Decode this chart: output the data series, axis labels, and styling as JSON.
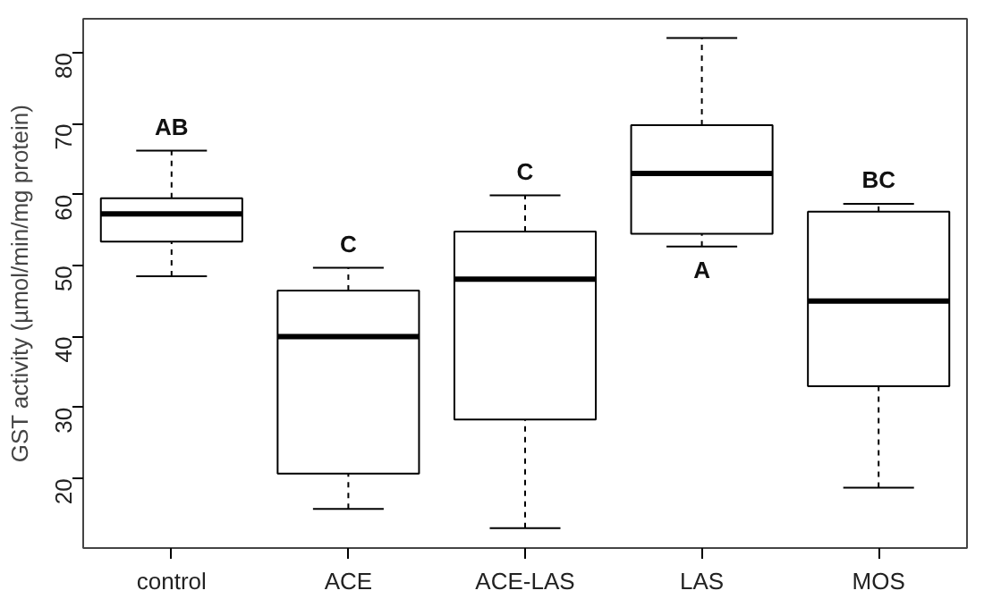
{
  "chart_data": {
    "type": "box",
    "ylabel": "GST activity (µmol/min/mg protein)",
    "categories": [
      "control",
      "ACE",
      "ACE-LAS",
      "LAS",
      "MOS"
    ],
    "boxes": [
      {
        "low": 48.5,
        "q1": 53.4,
        "median": 57.3,
        "q3": 59.5,
        "high": 66.2
      },
      {
        "low": 15.7,
        "q1": 20.7,
        "median": 40.0,
        "q3": 46.5,
        "high": 49.7
      },
      {
        "low": 13.0,
        "q1": 28.3,
        "median": 48.1,
        "q3": 54.8,
        "high": 59.9
      },
      {
        "low": 52.7,
        "q1": 54.5,
        "median": 63.0,
        "q3": 69.8,
        "high": 82.1
      },
      {
        "low": 18.7,
        "q1": 33.0,
        "median": 45.0,
        "q3": 57.6,
        "high": 58.7
      }
    ],
    "color": "#000000",
    "ylim": [
      10.2,
      84.8
    ],
    "yticks": [
      20,
      30,
      40,
      50,
      60,
      70,
      80
    ],
    "grid": false,
    "annotations": [
      "AB",
      "C",
      "C",
      "A",
      "BC"
    ]
  }
}
